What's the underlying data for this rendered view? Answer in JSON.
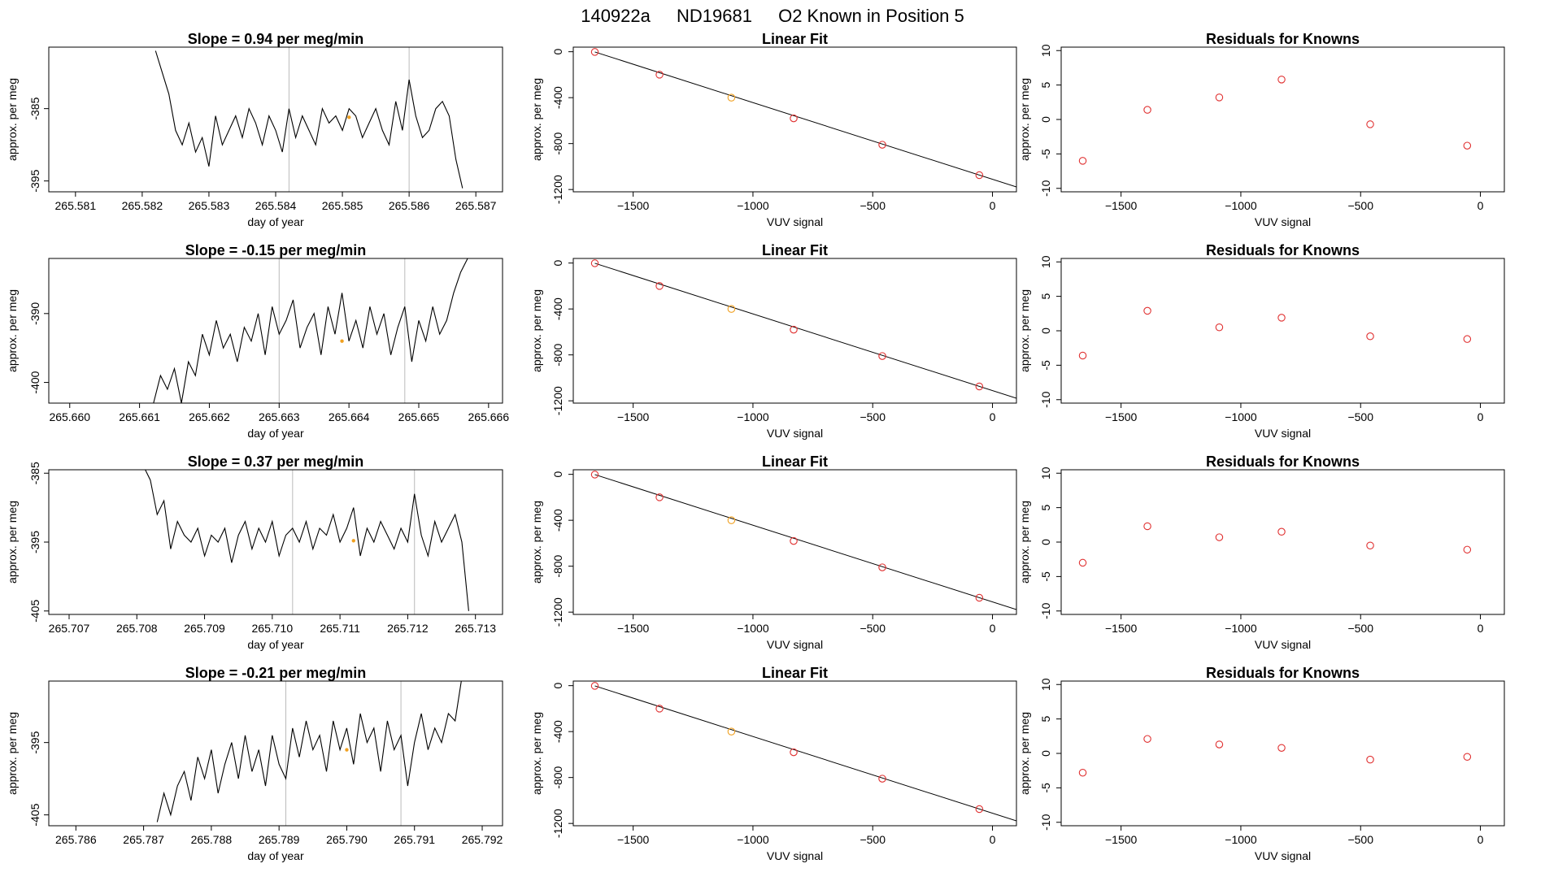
{
  "figure": {
    "title_parts": [
      "140922a",
      "ND19681",
      "O2 Known in Position  5"
    ]
  },
  "chart_data": [
    {
      "type": "line",
      "row": 1,
      "title": "Slope =  0.94  per meg/min",
      "xlabel": "day of year",
      "ylabel": "approx. per meg",
      "xlim": [
        265.5806,
        265.5874
      ],
      "ylim": [
        -396.5,
        -376.5
      ],
      "xticks": [
        "265.581",
        "265.582",
        "265.583",
        "265.584",
        "265.585",
        "265.586",
        "265.587"
      ],
      "yticks": [
        -395,
        -385
      ],
      "vlines": [
        265.5842,
        265.586
      ],
      "marker": {
        "x": 265.5851,
        "y": -386.2
      },
      "series": {
        "x": [
          265.5822,
          265.5823,
          265.5824,
          265.5825,
          265.5826,
          265.5827,
          265.5828,
          265.5829,
          265.583,
          265.5831,
          265.5832,
          265.5833,
          265.5834,
          265.5835,
          265.5836,
          265.5837,
          265.5838,
          265.5839,
          265.584,
          265.5841,
          265.5842,
          265.5843,
          265.5844,
          265.5845,
          265.5846,
          265.5847,
          265.5848,
          265.5849,
          265.585,
          265.5851,
          265.5852,
          265.5853,
          265.5854,
          265.5855,
          265.5856,
          265.5857,
          265.5858,
          265.5859,
          265.586,
          265.5861,
          265.5862,
          265.5863,
          265.5864,
          265.5865,
          265.5866,
          265.5867,
          265.5868
        ],
        "y": [
          -377,
          -380,
          -383,
          -388,
          -390,
          -387,
          -391,
          -389,
          -393,
          -386,
          -390,
          -388,
          -386,
          -389,
          -385,
          -387,
          -390,
          -386,
          -388,
          -391,
          -385,
          -389,
          -386,
          -388,
          -390,
          -385,
          -387,
          -386,
          -388,
          -385,
          -386,
          -389,
          -387,
          -385,
          -388,
          -390,
          -384,
          -388,
          -381,
          -386,
          -389,
          -388,
          -385,
          -384,
          -386,
          -392,
          -396
        ]
      }
    },
    {
      "type": "scatter",
      "row": 1,
      "title": "Linear Fit",
      "xlabel": "VUV signal",
      "ylabel": "approx. per meg",
      "xlim": [
        -1750,
        100
      ],
      "ylim": [
        -1220,
        40
      ],
      "xticks": [
        -1500,
        -1000,
        -500,
        0
      ],
      "yticks": [
        0,
        -400,
        -800,
        -1200
      ],
      "points": {
        "x": [
          -1660,
          -1390,
          -1090,
          -830,
          -460,
          -55
        ],
        "y": [
          -2,
          -200,
          -400,
          -580,
          -810,
          -1075
        ]
      },
      "highlight_index": 2,
      "fit_line": {
        "x": [
          -1660,
          100
        ],
        "y": [
          -2,
          -1178
        ]
      }
    },
    {
      "type": "scatter",
      "row": 1,
      "title": "Residuals for Knowns",
      "xlabel": "VUV signal",
      "ylabel": "approx. per meg",
      "xlim": [
        -1750,
        100
      ],
      "ylim": [
        -10.5,
        10.5
      ],
      "xticks": [
        -1500,
        -1000,
        -500,
        0
      ],
      "yticks": [
        10,
        5,
        0,
        -5,
        -10
      ],
      "points": {
        "x": [
          -1660,
          -1390,
          -1090,
          -830,
          -460,
          -55
        ],
        "y": [
          -6,
          1.4,
          3.2,
          5.8,
          -0.7,
          -3.8
        ]
      }
    },
    {
      "type": "line",
      "row": 2,
      "title": "Slope =  -0.15  per meg/min",
      "xlabel": "day of year",
      "ylabel": "approx. per meg",
      "xlim": [
        265.6597,
        265.6662
      ],
      "ylim": [
        -403,
        -382
      ],
      "xticks": [
        "265.660",
        "265.661",
        "265.662",
        "265.663",
        "265.664",
        "265.665",
        "265.666"
      ],
      "yticks": [
        -390,
        -400
      ],
      "vlines": [
        265.663,
        265.6648
      ],
      "marker": {
        "x": 265.6639,
        "y": -394
      },
      "series": {
        "x": [
          265.6612,
          265.6613,
          265.6614,
          265.6615,
          265.6616,
          265.6617,
          265.6618,
          265.6619,
          265.662,
          265.6621,
          265.6622,
          265.6623,
          265.6624,
          265.6625,
          265.6626,
          265.6627,
          265.6628,
          265.6629,
          265.663,
          265.6631,
          265.6632,
          265.6633,
          265.6634,
          265.6635,
          265.6636,
          265.6637,
          265.6638,
          265.6639,
          265.664,
          265.6641,
          265.6642,
          265.6643,
          265.6644,
          265.6645,
          265.6646,
          265.6647,
          265.6648,
          265.6649,
          265.665,
          265.6651,
          265.6652,
          265.6653,
          265.6654,
          265.6655,
          265.6656,
          265.6657
        ],
        "y": [
          -403,
          -399,
          -401,
          -398,
          -403,
          -397,
          -399,
          -393,
          -396,
          -391,
          -395,
          -393,
          -397,
          -392,
          -394,
          -390,
          -396,
          -389,
          -393,
          -391,
          -388,
          -395,
          -392,
          -390,
          -396,
          -389,
          -393,
          -387,
          -394,
          -391,
          -395,
          -389,
          -393,
          -390,
          -396,
          -392,
          -389,
          -397,
          -391,
          -394,
          -389,
          -393,
          -391,
          -387,
          -384,
          -382
        ]
      }
    },
    {
      "type": "scatter",
      "row": 2,
      "title": "Linear Fit",
      "xlabel": "VUV signal",
      "ylabel": "approx. per meg",
      "xlim": [
        -1750,
        100
      ],
      "ylim": [
        -1220,
        40
      ],
      "xticks": [
        -1500,
        -1000,
        -500,
        0
      ],
      "yticks": [
        0,
        -400,
        -800,
        -1200
      ],
      "points": {
        "x": [
          -1660,
          -1390,
          -1090,
          -830,
          -460,
          -55
        ],
        "y": [
          -2,
          -200,
          -400,
          -580,
          -810,
          -1075
        ]
      },
      "highlight_index": 2,
      "fit_line": {
        "x": [
          -1660,
          100
        ],
        "y": [
          -2,
          -1178
        ]
      }
    },
    {
      "type": "scatter",
      "row": 2,
      "title": "Residuals for Knowns",
      "xlabel": "VUV signal",
      "ylabel": "approx. per meg",
      "xlim": [
        -1750,
        100
      ],
      "ylim": [
        -10.5,
        10.5
      ],
      "xticks": [
        -1500,
        -1000,
        -500,
        0
      ],
      "yticks": [
        10,
        5,
        0,
        -5,
        -10
      ],
      "points": {
        "x": [
          -1660,
          -1390,
          -1090,
          -830,
          -460,
          -55
        ],
        "y": [
          -3.6,
          2.9,
          0.5,
          1.9,
          -0.8,
          -1.2
        ]
      }
    },
    {
      "type": "line",
      "row": 3,
      "title": "Slope =  0.37  per meg/min",
      "xlabel": "day of year",
      "ylabel": "approx. per meg",
      "xlim": [
        265.7067,
        265.7134
      ],
      "ylim": [
        -405.5,
        -384.5
      ],
      "xticks": [
        "265.707",
        "265.708",
        "265.709",
        "265.710",
        "265.711",
        "265.712",
        "265.713"
      ],
      "yticks": [
        -385,
        -395,
        -405
      ],
      "vlines": [
        265.7103,
        265.7121
      ],
      "marker": {
        "x": 265.7112,
        "y": -394.8
      },
      "series": {
        "x": [
          265.7081,
          265.7082,
          265.7083,
          265.7084,
          265.7085,
          265.7086,
          265.7087,
          265.7088,
          265.7089,
          265.709,
          265.7091,
          265.7092,
          265.7093,
          265.7094,
          265.7095,
          265.7096,
          265.7097,
          265.7098,
          265.7099,
          265.71,
          265.7101,
          265.7102,
          265.7103,
          265.7104,
          265.7105,
          265.7106,
          265.7107,
          265.7108,
          265.7109,
          265.711,
          265.7111,
          265.7112,
          265.7113,
          265.7114,
          265.7115,
          265.7116,
          265.7117,
          265.7118,
          265.7119,
          265.712,
          265.7121,
          265.7122,
          265.7123,
          265.7124,
          265.7125,
          265.7126,
          265.7127,
          265.7128,
          265.7129
        ],
        "y": [
          -384,
          -386,
          -391,
          -389,
          -396,
          -392,
          -394,
          -395,
          -393,
          -397,
          -394,
          -395,
          -393,
          -398,
          -394,
          -392,
          -396,
          -393,
          -395,
          -392,
          -397,
          -394,
          -393,
          -395,
          -392,
          -396,
          -393,
          -394,
          -391,
          -395,
          -393,
          -390,
          -397,
          -393,
          -395,
          -392,
          -394,
          -396,
          -393,
          -395,
          -388,
          -394,
          -397,
          -392,
          -395,
          -393,
          -391,
          -395,
          -405
        ]
      }
    },
    {
      "type": "scatter",
      "row": 3,
      "title": "Linear Fit",
      "xlabel": "VUV signal",
      "ylabel": "approx. per meg",
      "xlim": [
        -1750,
        100
      ],
      "ylim": [
        -1220,
        40
      ],
      "xticks": [
        -1500,
        -1000,
        -500,
        0
      ],
      "yticks": [
        0,
        -400,
        -800,
        -1200
      ],
      "points": {
        "x": [
          -1660,
          -1390,
          -1090,
          -830,
          -460,
          -55
        ],
        "y": [
          -2,
          -200,
          -400,
          -580,
          -810,
          -1075
        ]
      },
      "highlight_index": 2,
      "fit_line": {
        "x": [
          -1660,
          100
        ],
        "y": [
          -2,
          -1178
        ]
      }
    },
    {
      "type": "scatter",
      "row": 3,
      "title": "Residuals for Knowns",
      "xlabel": "VUV signal",
      "ylabel": "approx. per meg",
      "xlim": [
        -1750,
        100
      ],
      "ylim": [
        -10.5,
        10.5
      ],
      "xticks": [
        -1500,
        -1000,
        -500,
        0
      ],
      "yticks": [
        10,
        5,
        0,
        -5,
        -10
      ],
      "points": {
        "x": [
          -1660,
          -1390,
          -1090,
          -830,
          -460,
          -55
        ],
        "y": [
          -3,
          2.3,
          0.7,
          1.5,
          -0.5,
          -1.1
        ]
      }
    },
    {
      "type": "line",
      "row": 4,
      "title": "Slope =  -0.21  per meg/min",
      "xlabel": "day of year",
      "ylabel": "approx. per meg",
      "xlim": [
        265.7856,
        265.7923
      ],
      "ylim": [
        -406.5,
        -386.5
      ],
      "xticks": [
        "265.786",
        "265.787",
        "265.788",
        "265.789",
        "265.790",
        "265.791",
        "265.792"
      ],
      "yticks": [
        -395,
        -405
      ],
      "vlines": [
        265.7891,
        265.7908
      ],
      "marker": {
        "x": 265.79,
        "y": -396
      },
      "series": {
        "x": [
          265.7872,
          265.7873,
          265.7874,
          265.7875,
          265.7876,
          265.7877,
          265.7878,
          265.7879,
          265.788,
          265.7881,
          265.7882,
          265.7883,
          265.7884,
          265.7885,
          265.7886,
          265.7887,
          265.7888,
          265.7889,
          265.789,
          265.7891,
          265.7892,
          265.7893,
          265.7894,
          265.7895,
          265.7896,
          265.7897,
          265.7898,
          265.7899,
          265.79,
          265.7901,
          265.7902,
          265.7903,
          265.7904,
          265.7905,
          265.7906,
          265.7907,
          265.7908,
          265.7909,
          265.791,
          265.7911,
          265.7912,
          265.7913,
          265.7914,
          265.7915,
          265.7916,
          265.7917
        ],
        "y": [
          -406,
          -402,
          -405,
          -401,
          -399,
          -403,
          -397,
          -400,
          -396,
          -402,
          -398,
          -395,
          -400,
          -394,
          -399,
          -396,
          -401,
          -394,
          -398,
          -400,
          -393,
          -397,
          -392,
          -396,
          -394,
          -399,
          -392,
          -396,
          -393,
          -398,
          -391,
          -395,
          -393,
          -399,
          -392,
          -396,
          -394,
          -401,
          -395,
          -391,
          -396,
          -393,
          -395,
          -391,
          -392,
          -386
        ]
      }
    },
    {
      "type": "scatter",
      "row": 4,
      "title": "Linear Fit",
      "xlabel": "VUV signal",
      "ylabel": "approx. per meg",
      "xlim": [
        -1750,
        100
      ],
      "ylim": [
        -1220,
        40
      ],
      "xticks": [
        -1500,
        -1000,
        -500,
        0
      ],
      "yticks": [
        0,
        -400,
        -800,
        -1200
      ],
      "points": {
        "x": [
          -1660,
          -1390,
          -1090,
          -830,
          -460,
          -55
        ],
        "y": [
          -2,
          -200,
          -400,
          -580,
          -810,
          -1075
        ]
      },
      "highlight_index": 2,
      "fit_line": {
        "x": [
          -1660,
          100
        ],
        "y": [
          -2,
          -1178
        ]
      }
    },
    {
      "type": "scatter",
      "row": 4,
      "title": "Residuals for Knowns",
      "xlabel": "VUV signal",
      "ylabel": "approx. per meg",
      "xlim": [
        -1750,
        100
      ],
      "ylim": [
        -10.5,
        10.5
      ],
      "xticks": [
        -1500,
        -1000,
        -500,
        0
      ],
      "yticks": [
        10,
        5,
        0,
        -5,
        -10
      ],
      "points": {
        "x": [
          -1660,
          -1390,
          -1090,
          -830,
          -460,
          -55
        ],
        "y": [
          -2.8,
          2.1,
          1.3,
          0.8,
          -0.9,
          -0.5
        ]
      }
    }
  ],
  "colors": {
    "line": "#000000",
    "point": "#e03030",
    "highlight": "#f0a020",
    "vline": "#bbbbbb",
    "frame": "#000000"
  }
}
